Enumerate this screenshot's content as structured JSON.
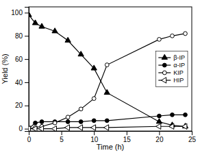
{
  "chart_data": {
    "type": "line",
    "xlabel": "Time (h)",
    "ylabel": "Yield (%)",
    "x": [
      0,
      1,
      2,
      4,
      6,
      8,
      10,
      12,
      20,
      22,
      24
    ],
    "series": [
      {
        "name": "β-IP",
        "color": "#000000",
        "marker": "triangle-up",
        "values": [
          98,
          91,
          88,
          84,
          76,
          64,
          52,
          31,
          6,
          3,
          2
        ]
      },
      {
        "name": "α-IP",
        "color": "#000000",
        "marker": "circle",
        "values": [
          0,
          5,
          6,
          6,
          6,
          6,
          7,
          7,
          11,
          12,
          12
        ]
      },
      {
        "name": "KIP",
        "color": "#000000",
        "marker": "circle-open",
        "values": [
          0,
          1,
          2,
          5,
          10,
          17,
          26,
          55,
          77,
          80,
          82
        ]
      },
      {
        "name": "HIP",
        "color": "#000000",
        "marker": "triangle-left-open",
        "values": [
          0,
          0,
          0,
          0,
          1,
          1,
          1,
          1,
          2,
          2,
          2
        ]
      }
    ],
    "xlim": [
      0,
      25
    ],
    "ylim": [
      -2,
      105
    ],
    "xticks": [
      0,
      5,
      10,
      15,
      20,
      25
    ],
    "yticks": [
      0,
      20,
      40,
      60,
      80,
      100
    ],
    "grid": false,
    "legend": "center right"
  }
}
